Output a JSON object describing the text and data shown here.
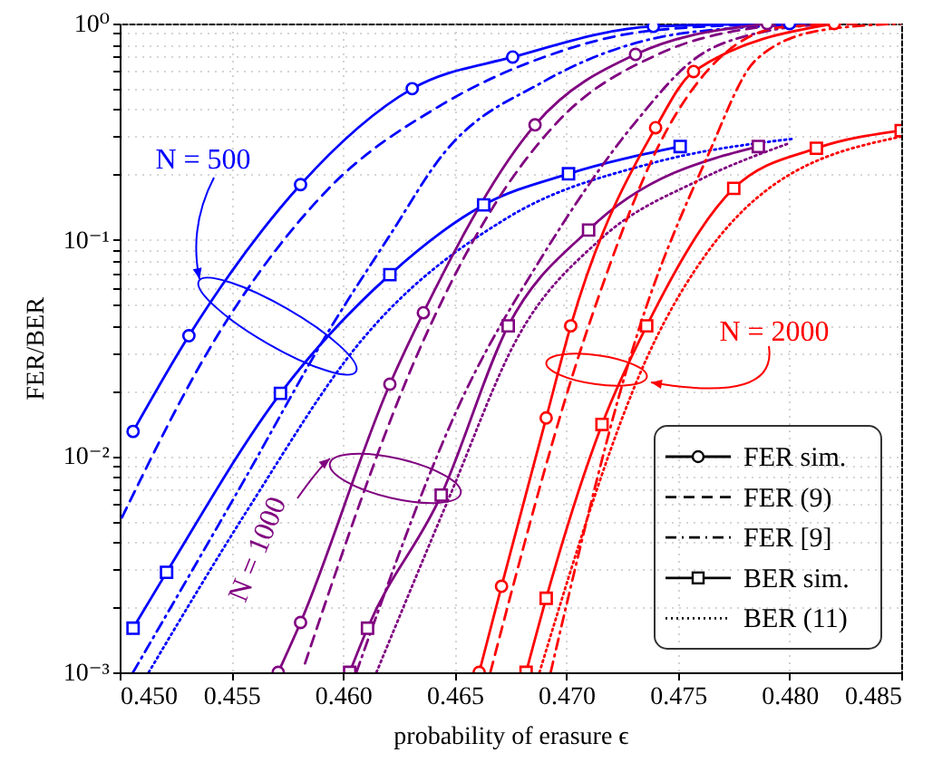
{
  "chart_data": {
    "type": "line",
    "xlabel": "probability of erasure ϵ",
    "ylabel": "FER/BER",
    "xlim": [
      0.45,
      0.485
    ],
    "ylim": [
      0.001,
      1
    ],
    "log": "y",
    "grid": true,
    "xticks": [
      {
        "value": 0.45,
        "label": "0.450"
      },
      0.455,
      {
        "value": 0.46,
        "label": "0.460"
      },
      0.465,
      {
        "value": 0.47,
        "label": "0.470"
      },
      0.475,
      {
        "value": 0.48,
        "label": "0.480"
      },
      0.485
    ],
    "yticks": [
      {
        "value": 0.001,
        "label": "10⁻³"
      },
      {
        "value": 0.002,
        "label": null
      },
      {
        "value": 0.003,
        "label": null
      },
      {
        "value": 0.004,
        "label": null
      },
      {
        "value": 0.005,
        "label": null
      },
      {
        "value": 0.006,
        "label": null
      },
      {
        "value": 0.007,
        "label": null
      },
      {
        "value": 0.008,
        "label": null
      },
      {
        "value": 0.009,
        "label": null
      },
      {
        "value": 0.01,
        "label": "10⁻²"
      },
      {
        "value": 0.02,
        "label": null
      },
      {
        "value": 0.03,
        "label": null
      },
      {
        "value": 0.04,
        "label": null
      },
      {
        "value": 0.05,
        "label": null
      },
      {
        "value": 0.06,
        "label": null
      },
      {
        "value": 0.07,
        "label": null
      },
      {
        "value": 0.08,
        "label": null
      },
      {
        "value": 0.09,
        "label": null
      },
      {
        "value": 0.1,
        "label": "10⁻¹"
      },
      {
        "value": 0.2,
        "label": null
      },
      {
        "value": 0.3,
        "label": null
      },
      {
        "value": 0.4,
        "label": null
      },
      {
        "value": 0.5,
        "label": null
      },
      {
        "value": 0.6,
        "label": null
      },
      {
        "value": 0.7,
        "label": null
      },
      {
        "value": 0.8,
        "label": null
      },
      {
        "value": 0.9,
        "label": null
      },
      {
        "value": 1,
        "label": "10⁰"
      }
    ],
    "annotations": [
      "N = 500",
      "N = 1000",
      "N = 2000",
      "FER sim.",
      "FER (9)",
      "FER [9]",
      "BER sim.",
      "BER (11)"
    ],
    "series": [
      {
        "color": "#0000ff",
        "marker": "circle",
        "line_style": "solid",
        "x": [
          0.4506,
          0.4531,
          0.4581,
          0.4631,
          0.4676,
          0.4739,
          0.48
        ],
        "values": [
          0.013,
          0.036,
          0.18,
          0.5,
          0.7,
          0.97,
          1
        ]
      },
      {
        "color": "#0000ff",
        "line_style": "dashed",
        "x": [
          0.4501,
          0.4543,
          0.4593,
          0.4644,
          0.469,
          0.4739,
          0.48
        ],
        "values": [
          0.0052,
          0.035,
          0.17,
          0.42,
          0.7,
          0.93,
          1
        ]
      },
      {
        "color": "#0000ff",
        "line_style": "dashdot",
        "x": [
          0.4506,
          0.4555,
          0.4595,
          0.4621,
          0.4645,
          0.469,
          0.4755,
          0.482
        ],
        "values": [
          0.001,
          0.0075,
          0.04,
          0.105,
          0.25,
          0.54,
          0.91,
          1
        ]
      },
      {
        "color": "#0000ff",
        "marker": "square",
        "line_style": "solid",
        "x": [
          0.4506,
          0.4521,
          0.4572,
          0.4621,
          0.4663,
          0.4701,
          0.4751
        ],
        "values": [
          0.0016,
          0.0029,
          0.0195,
          0.069,
          0.145,
          0.202,
          0.27
        ]
      },
      {
        "color": "#0000ff",
        "line_style": "dotted",
        "x": [
          0.4513,
          0.4558,
          0.4607,
          0.4674,
          0.4739,
          0.4801
        ],
        "values": [
          0.001,
          0.0058,
          0.033,
          0.127,
          0.227,
          0.293
        ]
      },
      {
        "color": "#800080",
        "marker": "circle",
        "line_style": "solid",
        "x": [
          0.4571,
          0.4581,
          0.4621,
          0.4636,
          0.4686,
          0.4731,
          0.479
        ],
        "values": [
          0.001,
          0.0017,
          0.0215,
          0.046,
          0.34,
          0.72,
          1
        ]
      },
      {
        "color": "#800080",
        "line_style": "dashed",
        "x": [
          0.4583,
          0.4637,
          0.4665,
          0.4696,
          0.4741,
          0.48
        ],
        "values": [
          0.0011,
          0.036,
          0.13,
          0.35,
          0.72,
          1
        ]
      },
      {
        "color": "#800080",
        "line_style": "dashdot",
        "x": [
          0.4606,
          0.4655,
          0.4688,
          0.4731,
          0.4757,
          0.4785,
          0.482
        ],
        "values": [
          0.001,
          0.02,
          0.08,
          0.35,
          0.68,
          0.9,
          1
        ]
      },
      {
        "color": "#800080",
        "marker": "square",
        "line_style": "solid",
        "x": [
          0.4603,
          0.4611,
          0.4644,
          0.4674,
          0.471,
          0.4786
        ],
        "values": [
          0.001,
          0.0016,
          0.0066,
          0.04,
          0.111,
          0.27
        ]
      },
      {
        "color": "#800080",
        "line_style": "dotted",
        "x": [
          0.4615,
          0.4648,
          0.4678,
          0.4715,
          0.476,
          0.48
        ],
        "values": [
          0.001,
          0.0066,
          0.035,
          0.1,
          0.19,
          0.28
        ]
      },
      {
        "color": "#ff0000",
        "marker": "circle",
        "line_style": "solid",
        "x": [
          0.4661,
          0.4671,
          0.4691,
          0.4702,
          0.474,
          0.4757,
          0.482
        ],
        "values": [
          0.001,
          0.0025,
          0.015,
          0.04,
          0.33,
          0.6,
          1
        ]
      },
      {
        "color": "#ff0000",
        "line_style": "dashed",
        "x": [
          0.4666,
          0.471,
          0.4747,
          0.4796,
          0.483
        ],
        "values": [
          0.001,
          0.04,
          0.35,
          0.96,
          1
        ]
      },
      {
        "color": "#ff0000",
        "line_style": "dashdot",
        "x": [
          0.4693,
          0.4733,
          0.4763,
          0.4785,
          0.4814,
          0.485
        ],
        "values": [
          0.001,
          0.04,
          0.24,
          0.68,
          0.93,
          1
        ]
      },
      {
        "color": "#ff0000",
        "marker": "square",
        "line_style": "solid",
        "x": [
          0.4682,
          0.4691,
          0.4716,
          0.4736,
          0.4775,
          0.4812,
          0.485
        ],
        "values": [
          0.001,
          0.0022,
          0.014,
          0.04,
          0.173,
          0.265,
          0.32
        ]
      },
      {
        "color": "#ff0000",
        "line_style": "dotted",
        "x": [
          0.4688,
          0.4739,
          0.4763,
          0.4785,
          0.485
        ],
        "values": [
          0.001,
          0.033,
          0.087,
          0.155,
          0.3
        ]
      }
    ]
  }
}
